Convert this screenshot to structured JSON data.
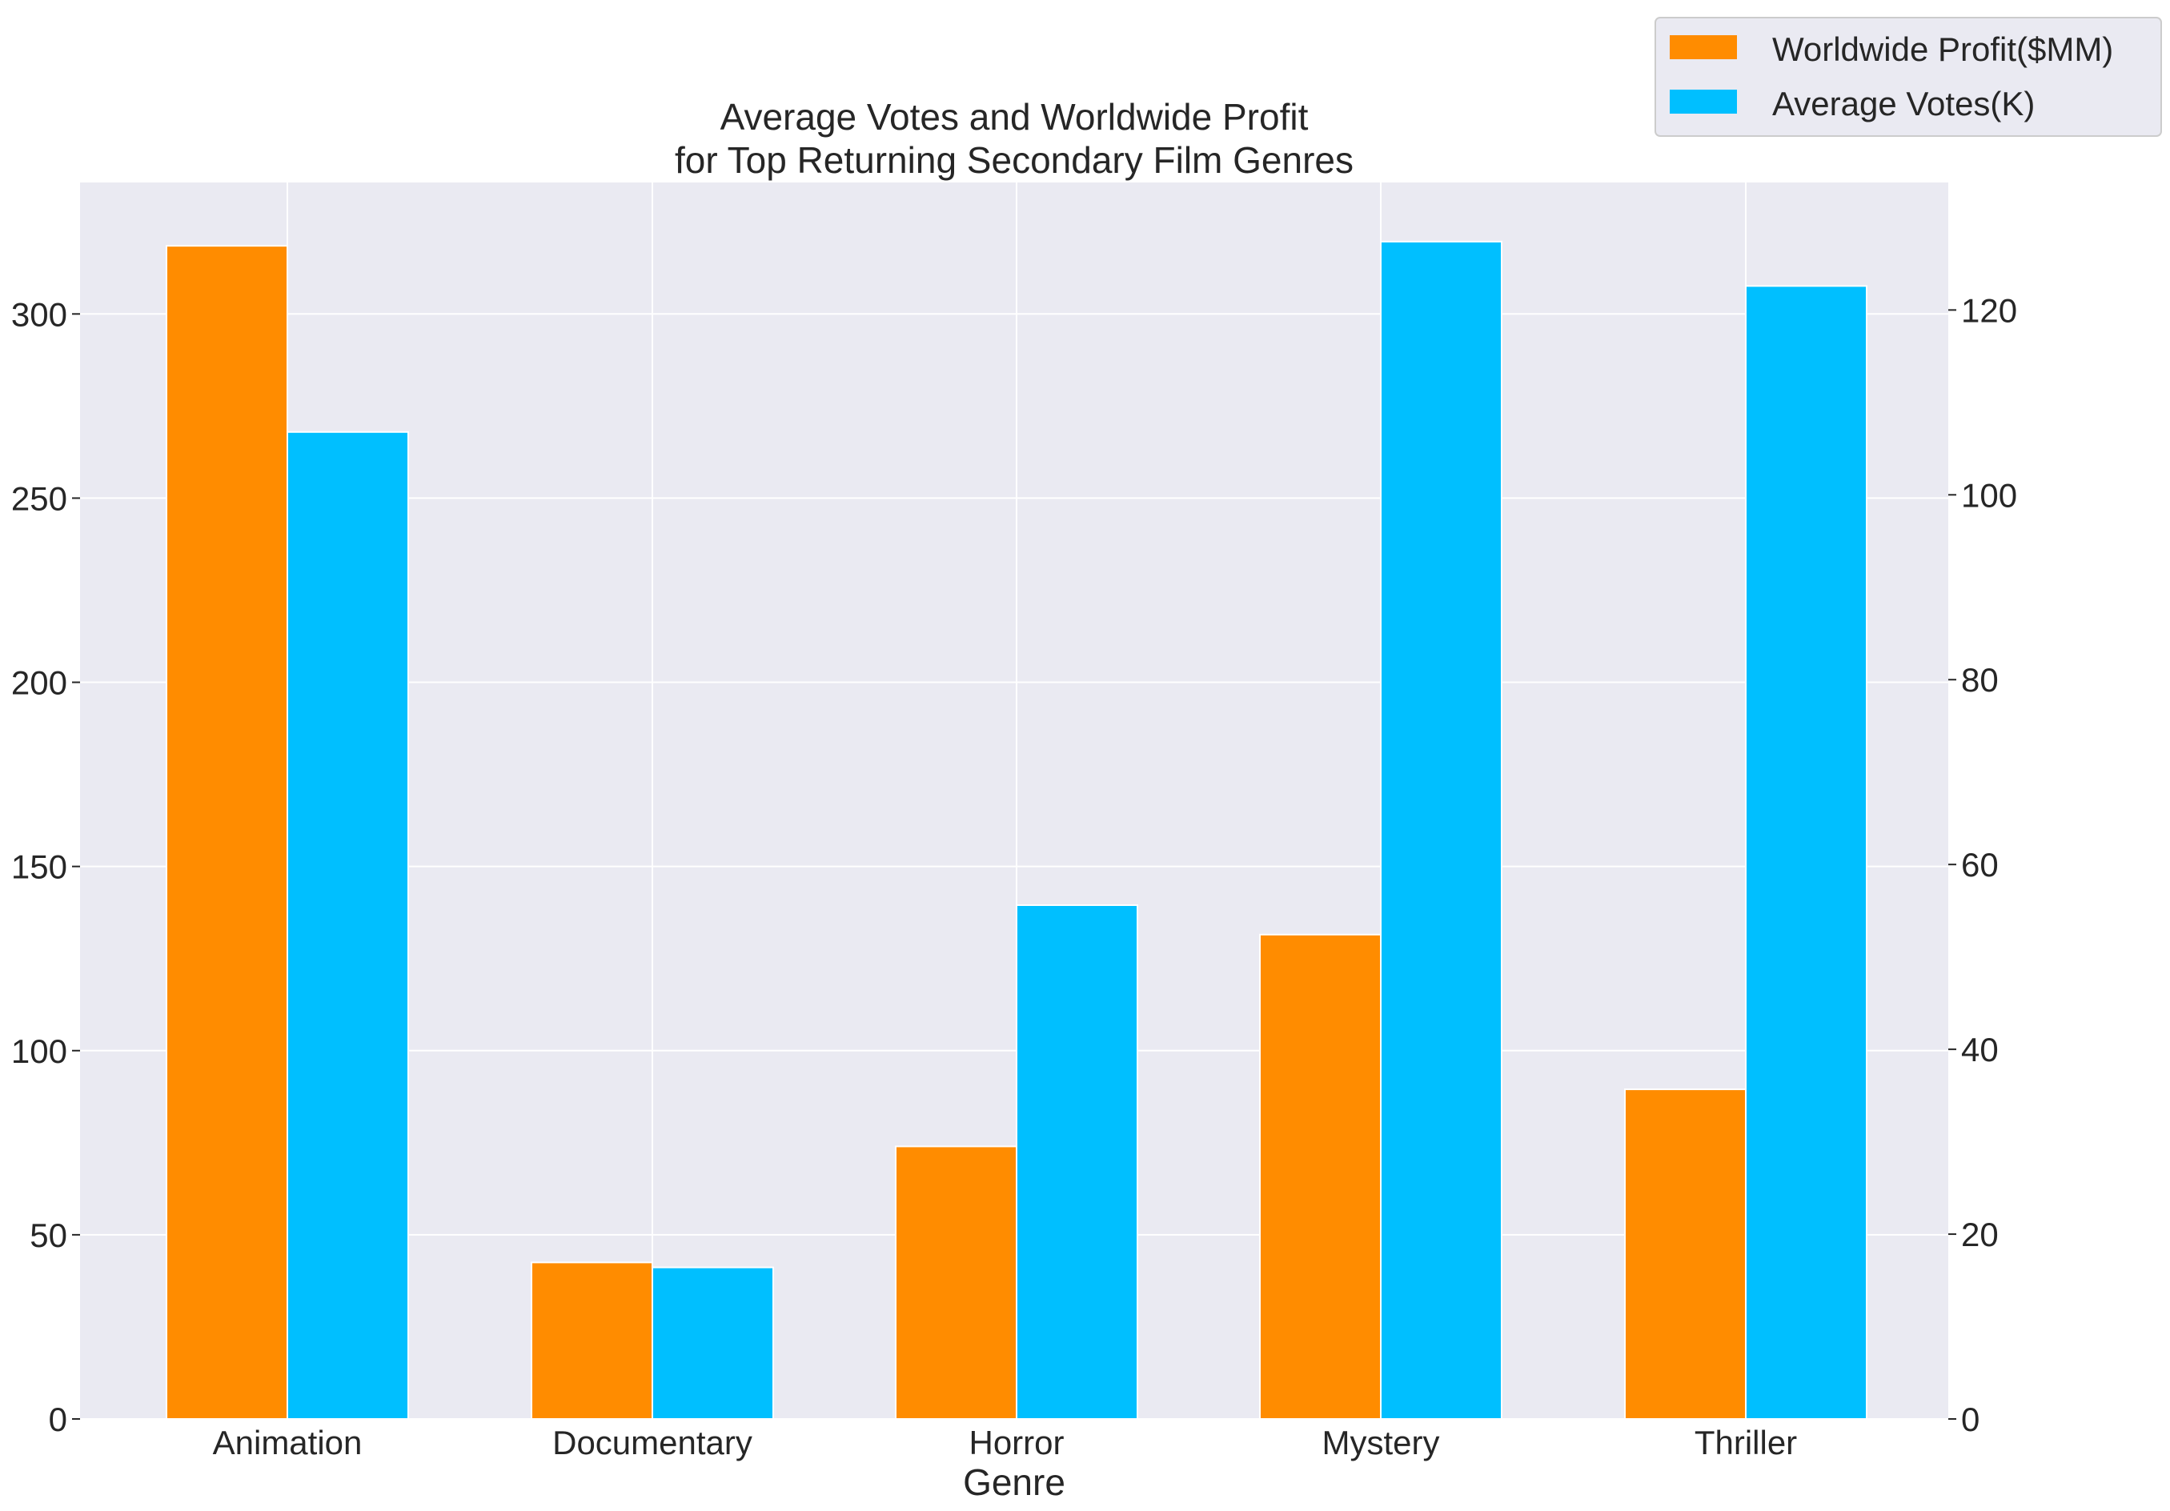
{
  "chart_data": {
    "type": "bar",
    "title_line1": "Average Votes and Worldwide Profit",
    "title_line2": "for Top Returning Secondary Film Genres",
    "xlabel": "Genre",
    "ylabel_left": "",
    "ylabel_right": "",
    "categories": [
      "Animation",
      "Documentary",
      "Horror",
      "Mystery",
      "Thriller"
    ],
    "series": [
      {
        "name": "Worldwide Profit($MM)",
        "axis": "left",
        "color": "#ff8c00",
        "values": [
          318.5,
          42.5,
          74.0,
          131.5,
          89.5
        ]
      },
      {
        "name": "Average Votes(K)",
        "axis": "right",
        "color": "#00bfff",
        "values": [
          106.8,
          16.4,
          55.6,
          127.4,
          122.6
        ]
      }
    ],
    "ylim_left": [
      0,
      335.7
    ],
    "ylim_right": [
      0,
      133.8
    ],
    "yticks_left": [
      "0",
      "50",
      "100",
      "150",
      "200",
      "250",
      "300"
    ],
    "yticks_right": [
      "0",
      "20",
      "40",
      "60",
      "80",
      "100",
      "120"
    ],
    "grid": true,
    "legend_position": "top-right",
    "colors": {
      "plot_background": "#eaeaf2",
      "grid": "#ffffff",
      "text": "#262626"
    }
  }
}
